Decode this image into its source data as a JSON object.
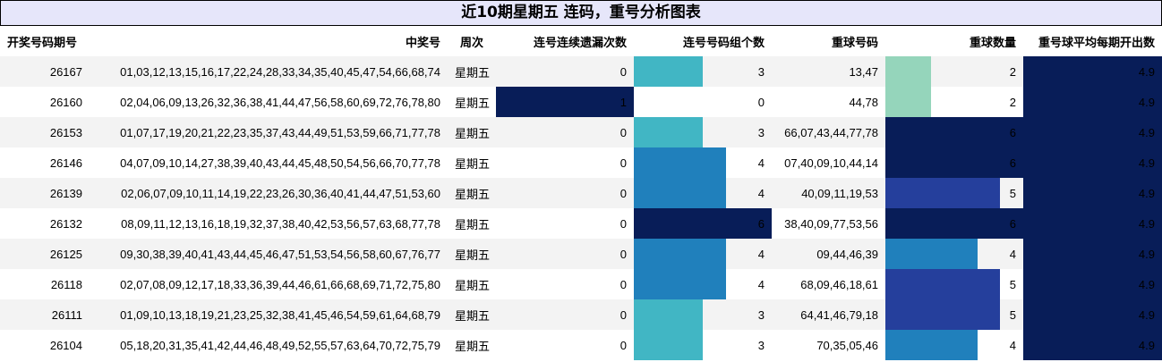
{
  "title": "近10期星期五 连码，重号分析图表",
  "columns": [
    "开奖号码期号",
    "中奖号",
    "周次",
    "连号连续遗漏次数",
    "连号号码组个数",
    "重球号码",
    "重球数量",
    "重号球平均每期开出数"
  ],
  "scales": {
    "miss_max": 1,
    "groups_max": 6,
    "repeat_max": 6
  },
  "colors": {
    "light_teal": "#95d5bb",
    "teal": "#41b6c4",
    "blue": "#2080bc",
    "indigo": "#253f9c",
    "navy": "#081d58"
  },
  "rows": [
    {
      "period": "26167",
      "numbers": "01,03,12,13,15,16,17,22,24,28,33,34,35,40,45,47,54,66,68,74",
      "week": "星期五",
      "miss": 0,
      "groups": 3,
      "repeat_nums": "13,47",
      "repeat_count": 2,
      "avg": "4.9"
    },
    {
      "period": "26160",
      "numbers": "02,04,06,09,13,26,32,36,38,41,44,47,56,58,60,69,72,76,78,80",
      "week": "星期五",
      "miss": 1,
      "groups": 0,
      "repeat_nums": "44,78",
      "repeat_count": 2,
      "avg": "4.9"
    },
    {
      "period": "26153",
      "numbers": "01,07,17,19,20,21,22,23,35,37,43,44,49,51,53,59,66,71,77,78",
      "week": "星期五",
      "miss": 0,
      "groups": 3,
      "repeat_nums": "66,07,43,44,77,78",
      "repeat_count": 6,
      "avg": "4.9"
    },
    {
      "period": "26146",
      "numbers": "04,07,09,10,14,27,38,39,40,43,44,45,48,50,54,56,66,70,77,78",
      "week": "星期五",
      "miss": 0,
      "groups": 4,
      "repeat_nums": "07,40,09,10,44,14",
      "repeat_count": 6,
      "avg": "4.9"
    },
    {
      "period": "26139",
      "numbers": "02,06,07,09,10,11,14,19,22,23,26,30,36,40,41,44,47,51,53,60",
      "week": "星期五",
      "miss": 0,
      "groups": 4,
      "repeat_nums": "40,09,11,19,53",
      "repeat_count": 5,
      "avg": "4.9"
    },
    {
      "period": "26132",
      "numbers": "08,09,11,12,13,16,18,19,32,37,38,40,42,53,56,57,63,68,77,78",
      "week": "星期五",
      "miss": 0,
      "groups": 6,
      "repeat_nums": "38,40,09,77,53,56",
      "repeat_count": 6,
      "avg": "4.9"
    },
    {
      "period": "26125",
      "numbers": "09,30,38,39,40,41,43,44,45,46,47,51,53,54,56,58,60,67,76,77",
      "week": "星期五",
      "miss": 0,
      "groups": 4,
      "repeat_nums": "09,44,46,39",
      "repeat_count": 4,
      "avg": "4.9"
    },
    {
      "period": "26118",
      "numbers": "02,07,08,09,12,17,18,33,36,39,44,46,61,66,68,69,71,72,75,80",
      "week": "星期五",
      "miss": 0,
      "groups": 4,
      "repeat_nums": "68,09,46,18,61",
      "repeat_count": 5,
      "avg": "4.9"
    },
    {
      "period": "26111",
      "numbers": "01,09,10,13,18,19,21,23,25,32,38,41,45,46,54,59,61,64,68,79",
      "week": "星期五",
      "miss": 0,
      "groups": 3,
      "repeat_nums": "64,41,46,79,18",
      "repeat_count": 5,
      "avg": "4.9"
    },
    {
      "period": "26104",
      "numbers": "05,18,20,31,35,41,42,44,46,48,49,52,55,57,63,64,70,72,75,79",
      "week": "星期五",
      "miss": 0,
      "groups": 3,
      "repeat_nums": "70,35,05,46",
      "repeat_count": 4,
      "avg": "4.9"
    }
  ]
}
